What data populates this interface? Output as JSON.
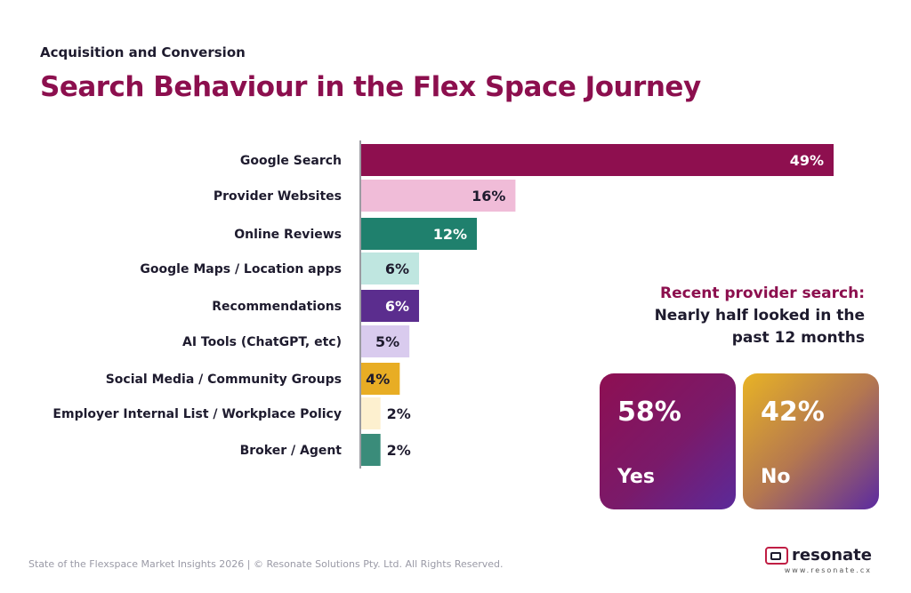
{
  "header": {
    "eyebrow": "Acquisition and Conversion",
    "title": "Search Behaviour in the Flex Space Journey"
  },
  "chart_data": {
    "type": "bar",
    "orientation": "horizontal",
    "categories": [
      "Google Search",
      "Provider Websites",
      "Online Reviews",
      "Google Maps / Location apps",
      "Recommendations",
      "AI Tools (ChatGPT, etc)",
      "Social Media / Community Groups",
      "Employer Internal List / Workplace Policy",
      "Broker / Agent"
    ],
    "values": [
      49,
      16,
      12,
      6,
      6,
      5,
      4,
      2,
      2
    ],
    "value_labels": [
      "49%",
      "16%",
      "12%",
      "6%",
      "6%",
      "5%",
      "4%",
      "2%",
      "2%"
    ],
    "colors": [
      "#8e0f4f",
      "#f0bcd8",
      "#1f806d",
      "#bfe6e0",
      "#5b2d8e",
      "#d9cbee",
      "#e8ad24",
      "#fdf0cf",
      "#3a8c7a"
    ],
    "label_colors": [
      "#ffffff",
      "#1e1b2e",
      "#ffffff",
      "#1e1b2e",
      "#ffffff",
      "#1e1b2e",
      "#1e1b2e",
      "#1e1b2e",
      "#1e1b2e"
    ],
    "xlim": [
      0,
      49
    ]
  },
  "callout": {
    "highlight": "Recent provider search:",
    "line1": "Nearly half looked in the",
    "line2": "past 12 months"
  },
  "cards": {
    "yes": {
      "pct": "58%",
      "label": "Yes"
    },
    "no": {
      "pct": "42%",
      "label": "No"
    }
  },
  "footer": {
    "text": "State of the Flexspace Market Insights 2026 | © Resonate Solutions Pty. Ltd. All Rights Reserved."
  },
  "logo": {
    "name": "resonate",
    "url": "www.resonate.cx"
  },
  "colors": {
    "brand": "#8c0f4e",
    "text": "#1e1b2e"
  }
}
